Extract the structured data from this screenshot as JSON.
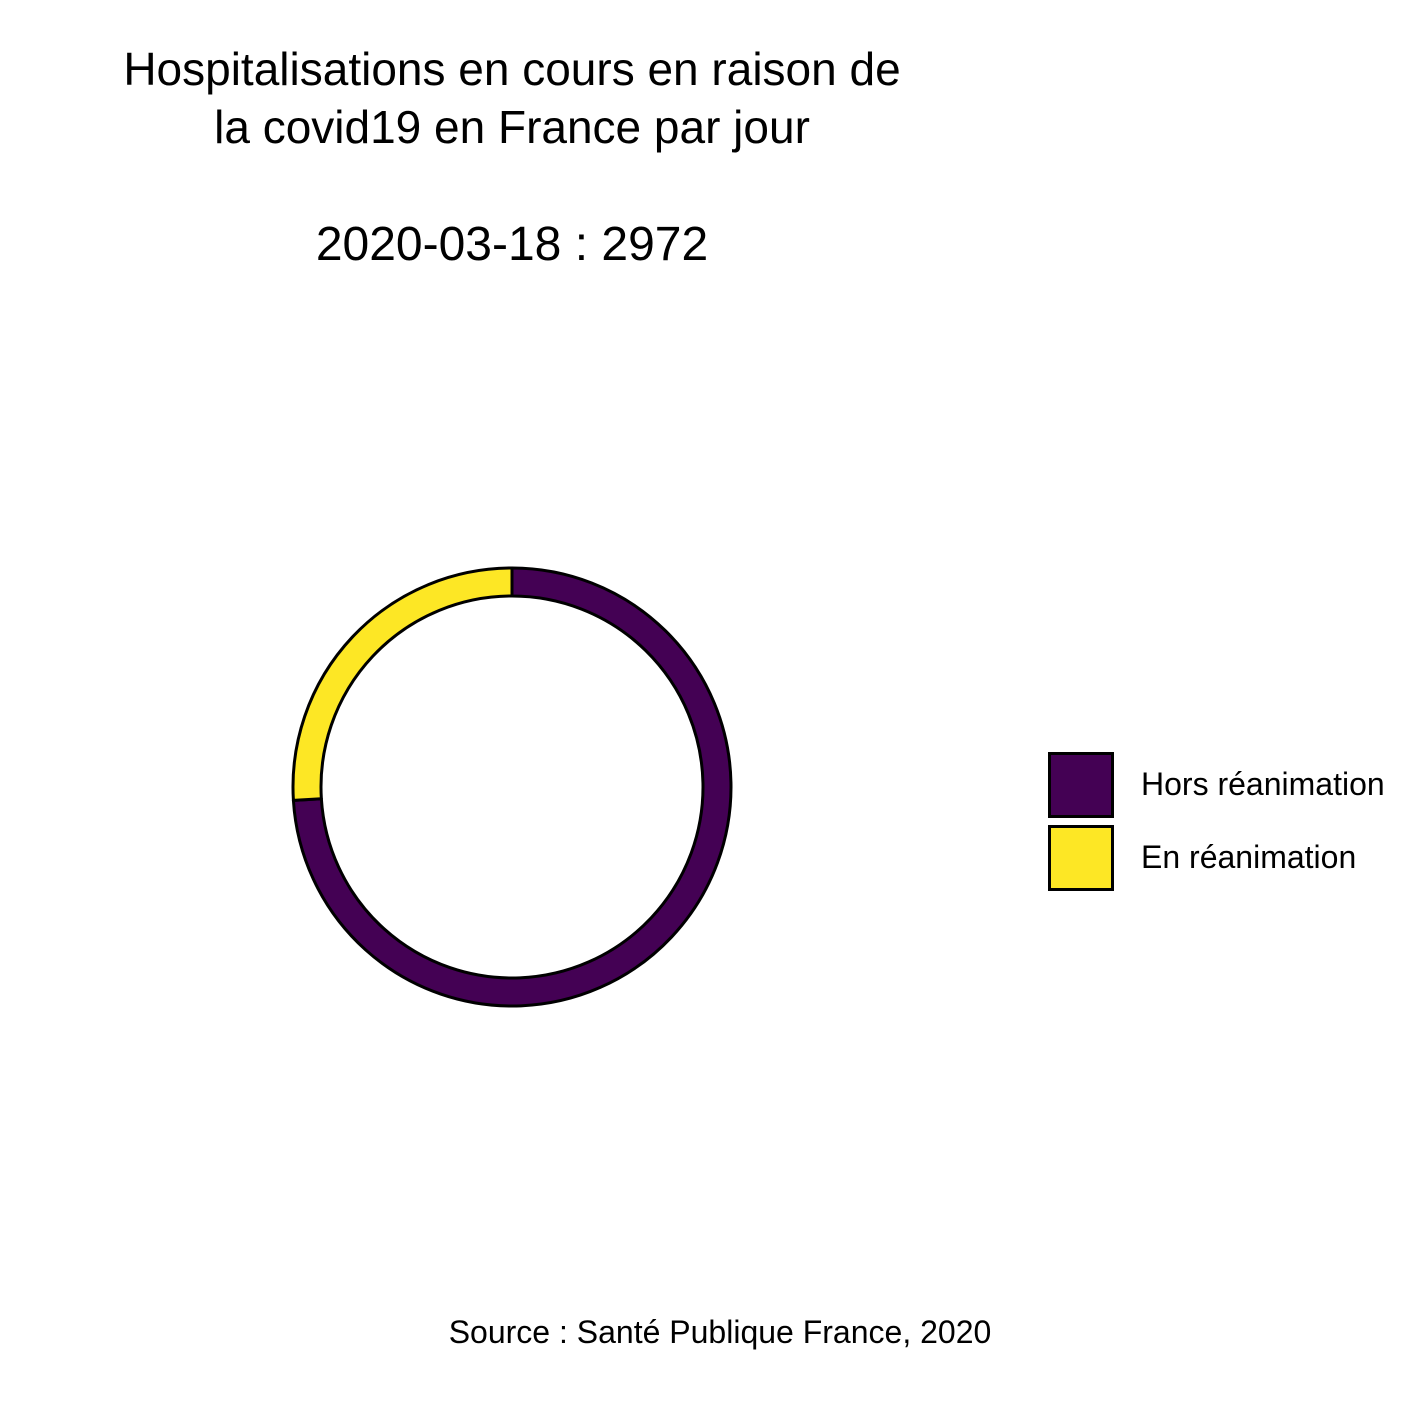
{
  "chart_data": {
    "type": "pie",
    "title": [
      "Hospitalisations en cours en raison de",
      "la covid19 en France par jour"
    ],
    "subtitle": "2020-03-18 : 2972",
    "caption": "Source : Santé Publique France, 2020",
    "series": [
      {
        "name": "Hors réanimation",
        "value": 2200,
        "color": "#440154"
      },
      {
        "name": "En réanimation",
        "value": 772,
        "color": "#FDE725"
      }
    ],
    "total": 2972,
    "style": "donut",
    "legend_position": "right"
  }
}
